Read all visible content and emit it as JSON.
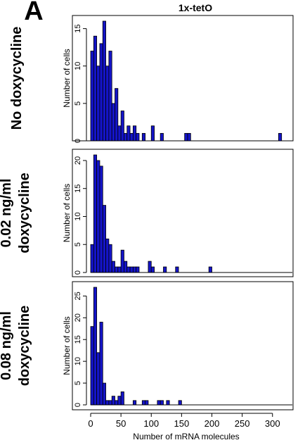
{
  "panel_letter": "A",
  "figure_title": "1x-tetO",
  "shared_xlabel": "Number of mRNA molecules",
  "x_ticks": [
    0,
    50,
    100,
    150,
    200,
    250,
    300
  ],
  "xlim": [
    0,
    320
  ],
  "bar_color": "#1414c8",
  "chart_data": [
    {
      "type": "bar",
      "row_label": [
        "No doxycycline"
      ],
      "ylabel": "Number of cells",
      "ylim": [
        0,
        16
      ],
      "y_ticks": [
        0,
        5,
        10,
        15
      ],
      "bin_width": 5,
      "bin_starts": [
        0,
        5,
        10,
        15,
        20,
        25,
        30,
        35,
        40,
        45,
        50,
        55,
        60,
        65,
        70,
        75,
        80,
        85,
        90,
        95,
        100,
        105,
        110,
        115,
        120,
        125,
        130,
        135,
        140,
        145,
        150,
        155,
        160,
        165,
        170,
        175,
        180,
        185,
        190,
        195,
        200,
        205,
        210,
        215,
        220,
        225,
        230,
        235,
        240,
        245,
        250,
        255,
        260,
        265,
        270,
        275,
        280,
        285,
        290,
        295,
        300,
        305,
        310
      ],
      "values": [
        12,
        14,
        10,
        13,
        16,
        10,
        12,
        5,
        7,
        2,
        4,
        1,
        2,
        1,
        2,
        1,
        0,
        1,
        0,
        0,
        2,
        0,
        0,
        1,
        0,
        0,
        0,
        0,
        0,
        0,
        0,
        1,
        1,
        0,
        0,
        0,
        0,
        0,
        0,
        0,
        0,
        0,
        0,
        0,
        0,
        0,
        0,
        0,
        0,
        0,
        0,
        0,
        0,
        0,
        0,
        0,
        0,
        0,
        0,
        0,
        0,
        0,
        1
      ]
    },
    {
      "type": "bar",
      "row_label": [
        "0.02 ng/ml",
        "doxycycline"
      ],
      "ylabel": "Number of cells",
      "ylim": [
        0,
        21
      ],
      "y_ticks": [
        0,
        5,
        10,
        15,
        20
      ],
      "bin_width": 5,
      "bin_starts": [
        0,
        5,
        10,
        15,
        20,
        25,
        30,
        35,
        40,
        45,
        50,
        55,
        60,
        65,
        70,
        75,
        80,
        85,
        90,
        95,
        100,
        105,
        110,
        115,
        120,
        125,
        130,
        135,
        140,
        145,
        150,
        155,
        160,
        165,
        170,
        175,
        180,
        185,
        190,
        195
      ],
      "values": [
        5,
        21,
        20,
        19,
        12,
        6,
        5,
        2,
        1,
        1,
        4,
        2,
        1,
        1,
        1,
        1,
        0,
        0,
        0,
        2,
        1,
        0,
        0,
        0,
        1,
        0,
        0,
        0,
        1,
        0,
        0,
        0,
        0,
        0,
        0,
        0,
        0,
        0,
        0,
        1
      ]
    },
    {
      "type": "bar",
      "row_label": [
        "0.08 ng/ml",
        "doxycycline"
      ],
      "ylabel": "Number of cells",
      "ylim": [
        0,
        27
      ],
      "y_ticks": [
        0,
        5,
        10,
        15,
        20,
        25
      ],
      "bin_width": 5,
      "bin_starts": [
        0,
        5,
        10,
        15,
        20,
        25,
        30,
        35,
        40,
        45,
        50,
        55,
        60,
        65,
        70,
        75,
        80,
        85,
        90,
        95,
        100,
        105,
        110,
        115,
        120,
        125,
        130,
        135,
        140,
        145
      ],
      "values": [
        18,
        27,
        12,
        19,
        5,
        1,
        1,
        2,
        1,
        2,
        3,
        0,
        0,
        0,
        1,
        0,
        0,
        1,
        1,
        0,
        0,
        0,
        1,
        1,
        0,
        1,
        0,
        0,
        0,
        1
      ]
    }
  ]
}
